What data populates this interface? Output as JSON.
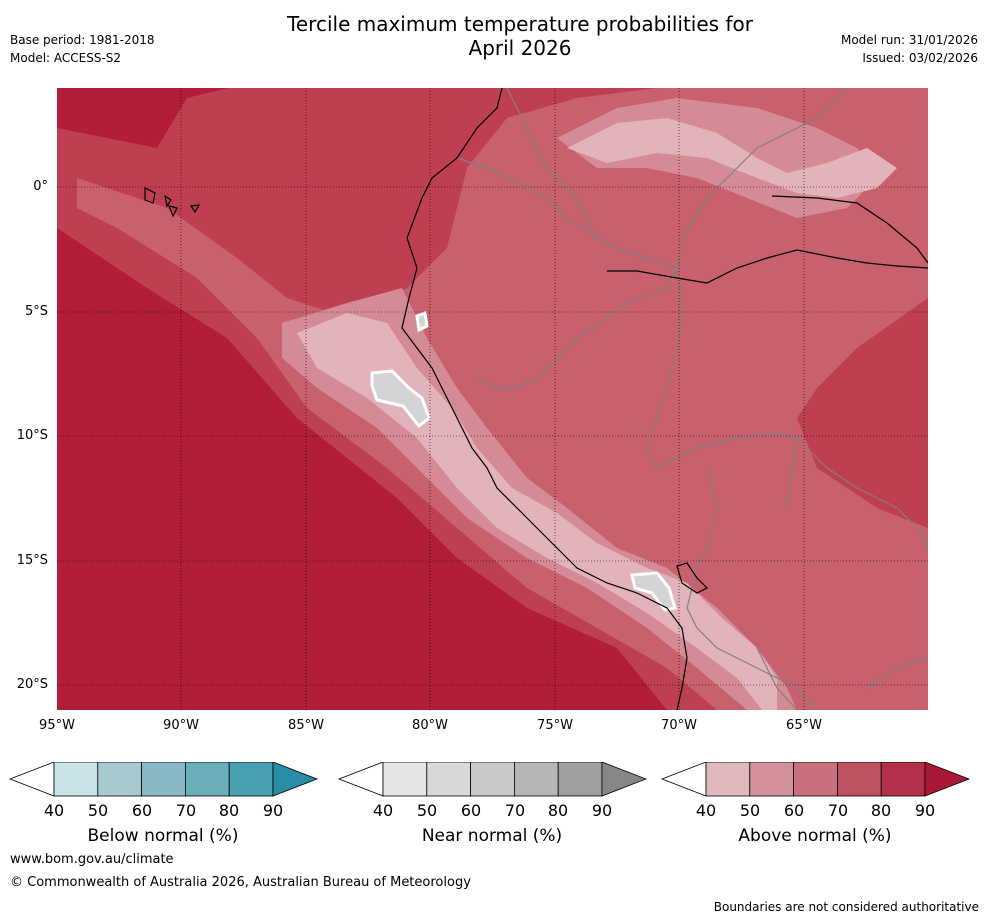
{
  "header": {
    "title_line1": "Tercile maximum temperature probabilities for",
    "title_line2": "April 2026",
    "base_period": "Base period: 1981-2018",
    "model": "Model: ACCESS-S2",
    "model_run": "Model run: 31/01/2026",
    "issued": "Issued: 03/02/2026"
  },
  "axes": {
    "latitude_labels": [
      "0°",
      "5°S",
      "10°S",
      "15°S",
      "20°S"
    ],
    "longitude_labels": [
      "95°W",
      "90°W",
      "85°W",
      "80°W",
      "75°W",
      "70°W",
      "65°W"
    ]
  },
  "colorbars": [
    {
      "name": "below",
      "title": "Below normal (%)",
      "ticks": [
        "40",
        "50",
        "60",
        "70",
        "80",
        "90"
      ],
      "colors": [
        "#ffffff",
        "#c8e2e8",
        "#a7c9d0",
        "#89b9c5",
        "#6aaeb9",
        "#479fb0",
        "#2a8ca5"
      ]
    },
    {
      "name": "near",
      "title": "Near normal (%)",
      "ticks": [
        "40",
        "50",
        "60",
        "70",
        "80",
        "90"
      ],
      "colors": [
        "#ffffff",
        "#e6e6e6",
        "#d8d8d8",
        "#cacaca",
        "#b6b6b6",
        "#a0a0a0",
        "#878787"
      ]
    },
    {
      "name": "above",
      "title": "Above normal (%)",
      "ticks": [
        "40",
        "50",
        "60",
        "70",
        "80",
        "90"
      ],
      "colors": [
        "#ffffff",
        "#e0b9bf",
        "#d4919b",
        "#c8707e",
        "#be5260",
        "#b2304a",
        "#aa1838"
      ]
    }
  ],
  "footer": {
    "website": "www.bom.gov.au/climate",
    "copyright": "© Commonwealth of Australia 2026, Australian Bureau of Meteorology",
    "disclaimer": "Boundaries are not considered authoritative"
  },
  "map_colors": {
    "above_90": "#b21d39",
    "above_80": "#bf3f52",
    "above_70": "#c9606e",
    "above_60": "#d58b96",
    "above_50": "#e2b3ba",
    "near": "#d4d4d4"
  }
}
